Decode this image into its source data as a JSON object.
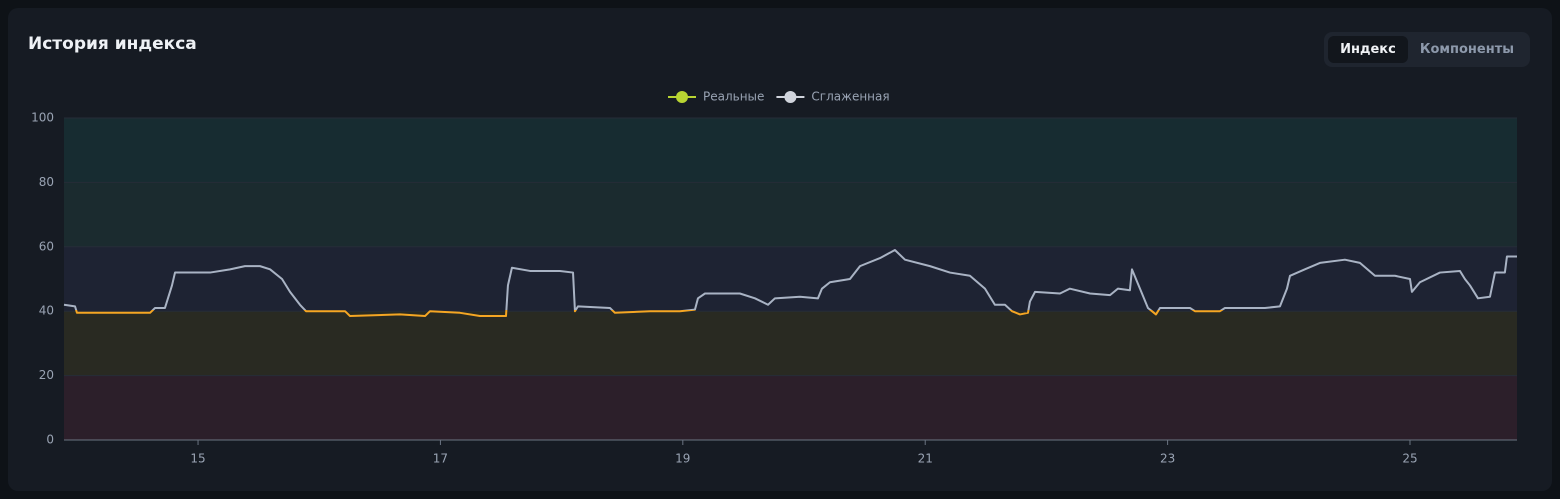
{
  "header": {
    "title": "История индекса",
    "tabs": [
      {
        "label": "Индекс",
        "active": true
      },
      {
        "label": "Компоненты",
        "active": false
      }
    ]
  },
  "chart_data": {
    "type": "line",
    "legend": [
      {
        "name": "Реальные",
        "color": "#b8d432"
      },
      {
        "name": "Сглаженная",
        "color": "#d0d4dc"
      }
    ],
    "x": [
      13.894,
      13.985,
      14.001,
      14.604,
      14.645,
      14.727,
      14.785,
      14.81,
      14.975,
      15.099,
      15.264,
      15.387,
      15.511,
      15.594,
      15.693,
      15.759,
      15.841,
      15.891,
      16.213,
      16.254,
      16.666,
      16.873,
      16.914,
      17.161,
      17.326,
      17.541,
      17.557,
      17.59,
      17.739,
      17.986,
      18.094,
      18.11,
      18.135,
      18.399,
      18.44,
      18.729,
      18.976,
      19.1,
      19.125,
      19.183,
      19.471,
      19.595,
      19.703,
      19.76,
      19.967,
      20.115,
      20.148,
      20.214,
      20.379,
      20.462,
      20.627,
      20.75,
      20.833,
      21.039,
      21.204,
      21.369,
      21.493,
      21.575,
      21.658,
      21.716,
      21.782,
      21.848,
      21.864,
      21.906,
      22.112,
      22.194,
      22.36,
      22.525,
      22.59,
      22.689,
      22.706,
      22.772,
      22.838,
      22.871,
      22.904,
      22.937,
      23.185,
      23.226,
      23.432,
      23.473,
      23.803,
      23.927,
      23.985,
      24.01,
      24.133,
      24.257,
      24.463,
      24.587,
      24.711,
      24.876,
      25.0,
      25.016,
      25.082,
      25.247,
      25.412,
      25.453,
      25.495,
      25.561,
      25.66,
      25.701,
      25.783,
      25.8,
      25.883
    ],
    "values": [
      42,
      41.5,
      39.5,
      39.5,
      41,
      41,
      48,
      52,
      52,
      52,
      53,
      54,
      54,
      53,
      50,
      46,
      42,
      40,
      40,
      38.5,
      39,
      38.5,
      40,
      39.5,
      38.5,
      38.5,
      48,
      53.5,
      52.5,
      52.5,
      52,
      40,
      41.5,
      41,
      39.5,
      40,
      40,
      40.5,
      44,
      45.5,
      45.5,
      44,
      42,
      44,
      44.5,
      44,
      47,
      49,
      50,
      54,
      56.5,
      59,
      56,
      54,
      52,
      51,
      47,
      42,
      42,
      40,
      39,
      39.5,
      43,
      46,
      45.5,
      47,
      45.5,
      45,
      47,
      46.5,
      53,
      47,
      41,
      40,
      39,
      41,
      41,
      40,
      40,
      41,
      41,
      41.5,
      47,
      51,
      53,
      55,
      56,
      55,
      51,
      51,
      50,
      46,
      49,
      52,
      52.5,
      50,
      48,
      44,
      44.5,
      52,
      52,
      57,
      57
    ],
    "line_color": "#a9b3c4",
    "below": {
      "threshold": 40,
      "color": "#f5a623"
    },
    "bands": [
      {
        "from": 0,
        "to": 20,
        "color": "#2c1f2a"
      },
      {
        "from": 20,
        "to": 40,
        "color": "#292a22"
      },
      {
        "from": 40,
        "to": 60,
        "color": "#1e2333"
      },
      {
        "from": 60,
        "to": 80,
        "color": "#1b2b2f"
      },
      {
        "from": 80,
        "to": 100,
        "color": "#172c31"
      }
    ],
    "xlim": [
      13.894,
      25.883
    ],
    "xticks": [
      15,
      17,
      19,
      21,
      23,
      25
    ],
    "ylim": [
      0,
      100
    ],
    "yticks": [
      0,
      20,
      40,
      60,
      80,
      100
    ],
    "grid": true
  }
}
